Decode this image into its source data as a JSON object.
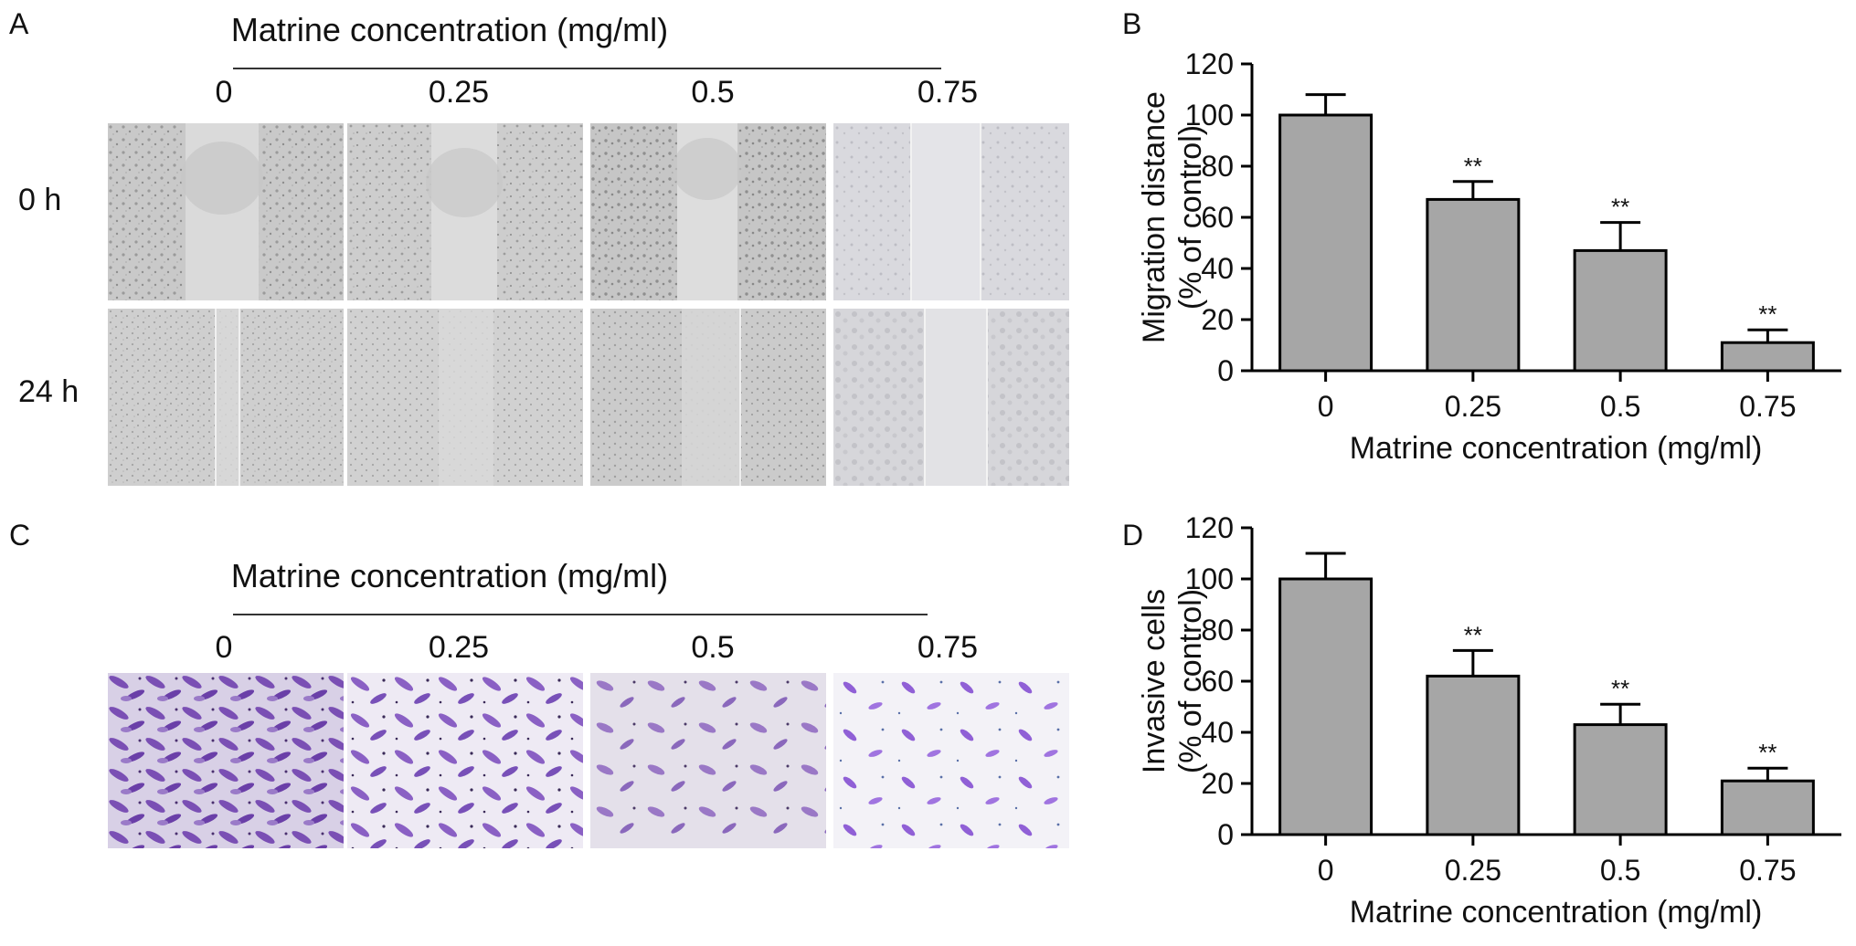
{
  "panels": {
    "A": {
      "letter": "A",
      "heading": "Matrine concentration (mg/ml)",
      "concentrations": [
        "0",
        "0.25",
        "0.5",
        "0.75"
      ],
      "rows": [
        "0 h",
        "24 h"
      ]
    },
    "C": {
      "letter": "C",
      "heading": "Matrine concentration (mg/ml)",
      "concentrations": [
        "0",
        "0.25",
        "0.5",
        "0.75"
      ]
    },
    "B": {
      "letter": "B"
    },
    "D": {
      "letter": "D"
    }
  },
  "chart_data": [
    {
      "panel": "B",
      "type": "bar",
      "categories": [
        "0",
        "0.25",
        "0.5",
        "0.75"
      ],
      "values": [
        100,
        67,
        47,
        11
      ],
      "errors": [
        8,
        7,
        11,
        5
      ],
      "annotations": [
        "",
        "**",
        "**",
        "**"
      ],
      "title": "",
      "xlabel": "Matrine concentration (mg/ml)",
      "ylabel": [
        "Migration distance",
        "(% of control)"
      ],
      "ylim": [
        0,
        120
      ],
      "yticks": [
        "0",
        "20",
        "40",
        "60",
        "80",
        "100",
        "120"
      ],
      "bar_color": "#a6a6a6",
      "grid": false
    },
    {
      "panel": "D",
      "type": "bar",
      "categories": [
        "0",
        "0.25",
        "0.5",
        "0.75"
      ],
      "values": [
        100,
        62,
        43,
        21
      ],
      "errors": [
        10,
        10,
        8,
        5
      ],
      "annotations": [
        "",
        "**",
        "**",
        "**"
      ],
      "title": "",
      "xlabel": "Matrine concentration (mg/ml)",
      "ylabel": [
        "Invasive cells",
        "(% of control)"
      ],
      "ylim": [
        0,
        120
      ],
      "yticks": [
        "0",
        "20",
        "40",
        "60",
        "80",
        "100",
        "120"
      ],
      "bar_color": "#a6a6a6",
      "grid": false
    }
  ]
}
